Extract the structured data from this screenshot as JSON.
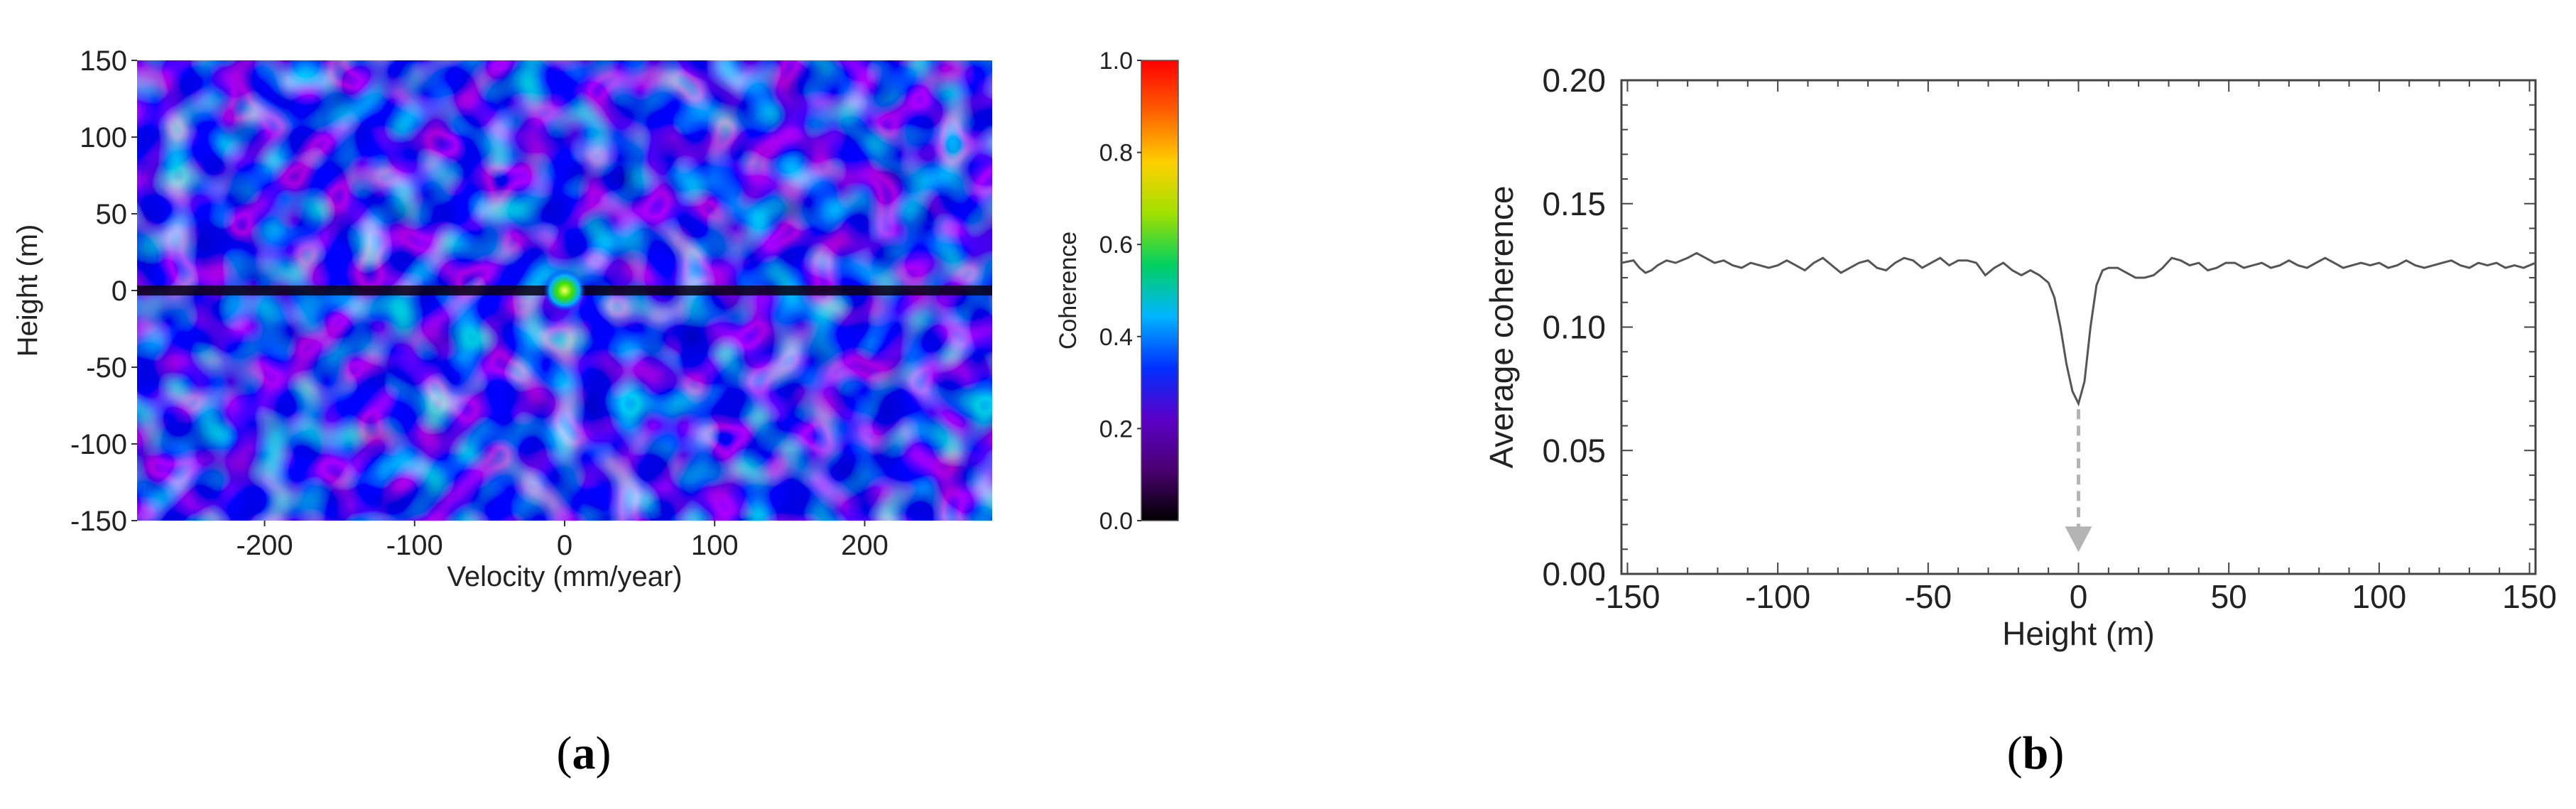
{
  "panel_a": {
    "label_open": "(",
    "label_letter": "a",
    "label_close": ")"
  },
  "panel_b": {
    "label_open": "(",
    "label_letter": "b",
    "label_close": ")"
  },
  "chart_data": [
    {
      "type": "heatmap",
      "title": "",
      "xlabel": "Velocity (mm/year)",
      "ylabel": "Height (m)",
      "xlim": [
        -285,
        285
      ],
      "ylim": [
        -150,
        150
      ],
      "x_ticks": [
        "-200",
        "-100",
        "0",
        "100",
        "200"
      ],
      "x_tick_values": [
        -200,
        -100,
        0,
        100,
        200
      ],
      "y_ticks": [
        "150",
        "100",
        "50",
        "0",
        "-50",
        "-100",
        "-150"
      ],
      "y_tick_values": [
        150,
        100,
        50,
        0,
        -50,
        -100,
        -150
      ],
      "colorbar": {
        "label": "Coherence",
        "range": [
          0.0,
          1.0
        ],
        "ticks": [
          "1.0",
          "0.8",
          "0.6",
          "0.4",
          "0.2",
          "0.0"
        ],
        "tick_values": [
          1.0,
          0.8,
          0.6,
          0.4,
          0.2,
          0.0
        ],
        "colors": [
          "#000000",
          "#4a0070",
          "#5a00c8",
          "#0030ff",
          "#00b4ff",
          "#00d060",
          "#a0e000",
          "#ffd000",
          "#ff6000",
          "#ff0000"
        ]
      },
      "background_coherence": 0.15,
      "peak": {
        "velocity": 0,
        "height": 0,
        "coherence": 0.6
      },
      "low_coherence_line": {
        "height": 0
      }
    },
    {
      "type": "line",
      "title": "",
      "xlabel": "Height (m)",
      "ylabel": "Average coherence",
      "xlim": [
        -152,
        152
      ],
      "ylim": [
        0.0,
        0.2
      ],
      "x_ticks": [
        "-150",
        "-100",
        "-50",
        "0",
        "50",
        "100",
        "150"
      ],
      "x_tick_values": [
        -150,
        -100,
        -50,
        0,
        50,
        100,
        150
      ],
      "y_ticks": [
        "0.20",
        "0.15",
        "0.10",
        "0.05",
        "0.00"
      ],
      "y_tick_values": [
        0.2,
        0.15,
        0.1,
        0.05,
        0.0
      ],
      "grid": false,
      "series": [
        {
          "color": "#555555",
          "x": [
            -152,
            -148,
            -146,
            -144,
            -142,
            -140,
            -137,
            -134,
            -130,
            -127,
            -124,
            -121,
            -118,
            -115,
            -112,
            -109,
            -106,
            -103,
            -100,
            -97,
            -94,
            -91,
            -88,
            -85,
            -82,
            -79,
            -76,
            -73,
            -70,
            -67,
            -64,
            -61,
            -58,
            -55,
            -52,
            -49,
            -46,
            -43,
            -40,
            -37,
            -34,
            -31,
            -28,
            -25,
            -22,
            -19,
            -16,
            -13,
            -10,
            -8,
            -6,
            -4,
            -2,
            0,
            2,
            4,
            6,
            8,
            10,
            13,
            16,
            19,
            22,
            25,
            28,
            31,
            34,
            37,
            40,
            43,
            46,
            49,
            52,
            55,
            58,
            61,
            64,
            67,
            70,
            73,
            76,
            79,
            82,
            85,
            88,
            91,
            94,
            97,
            100,
            103,
            106,
            109,
            112,
            115,
            118,
            121,
            124,
            127,
            130,
            133,
            136,
            139,
            142,
            145,
            148,
            152
          ],
          "y": [
            0.126,
            0.127,
            0.124,
            0.122,
            0.123,
            0.125,
            0.127,
            0.126,
            0.128,
            0.13,
            0.128,
            0.126,
            0.127,
            0.125,
            0.124,
            0.126,
            0.125,
            0.124,
            0.125,
            0.127,
            0.125,
            0.123,
            0.126,
            0.128,
            0.125,
            0.122,
            0.124,
            0.126,
            0.127,
            0.124,
            0.123,
            0.126,
            0.128,
            0.127,
            0.124,
            0.126,
            0.128,
            0.125,
            0.127,
            0.127,
            0.126,
            0.121,
            0.124,
            0.126,
            0.123,
            0.121,
            0.123,
            0.121,
            0.118,
            0.112,
            0.1,
            0.085,
            0.074,
            0.069,
            0.078,
            0.1,
            0.117,
            0.123,
            0.124,
            0.124,
            0.122,
            0.12,
            0.12,
            0.121,
            0.124,
            0.128,
            0.127,
            0.125,
            0.126,
            0.123,
            0.124,
            0.126,
            0.126,
            0.124,
            0.125,
            0.126,
            0.124,
            0.125,
            0.127,
            0.125,
            0.124,
            0.126,
            0.128,
            0.126,
            0.124,
            0.125,
            0.126,
            0.125,
            0.126,
            0.124,
            0.125,
            0.127,
            0.125,
            0.124,
            0.125,
            0.126,
            0.127,
            0.125,
            0.124,
            0.126,
            0.125,
            0.126,
            0.124,
            0.125,
            0.124,
            0.126
          ]
        }
      ],
      "annotation": {
        "type": "dashed-arrow",
        "x": 0,
        "from_y": 0.069,
        "to_y": 0.01,
        "color": "#b4b4b4"
      }
    }
  ]
}
